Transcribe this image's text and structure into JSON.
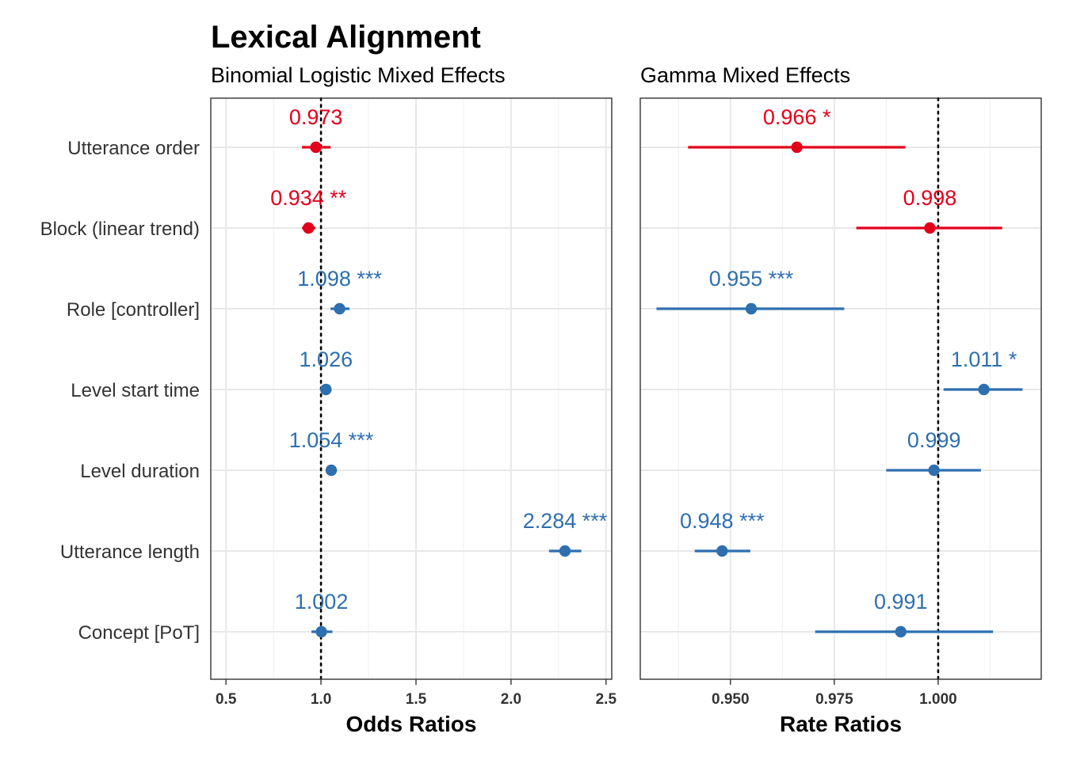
{
  "title": "Lexical Alignment",
  "colors": {
    "negative": "#e3001b",
    "positive": "#2e6fb0",
    "grid": "#e8e8e8",
    "panel_border": "#333333",
    "reference_line": "#000000"
  },
  "terms": [
    "Utterance order",
    "Block (linear trend)",
    "Role [controller]",
    "Level start time",
    "Level duration",
    "Utterance length",
    "Concept [PoT]"
  ],
  "chart_data": [
    {
      "type": "scatter",
      "subtitle": "Binomial Logistic Mixed Effects",
      "xlabel": "Odds Ratios",
      "xlim": [
        0.42,
        2.53
      ],
      "xticks": [
        0.5,
        1.0,
        1.5,
        2.0,
        2.5
      ],
      "xtick_labels": [
        "0.5",
        "1.0",
        "1.5",
        "2.0",
        "2.5"
      ],
      "reference_line": 1.0,
      "grid": true,
      "points": [
        {
          "term": "Utterance order",
          "estimate": 0.973,
          "ci_low": 0.9,
          "ci_high": 1.05,
          "label": "0.973",
          "direction": "negative"
        },
        {
          "term": "Block (linear trend)",
          "estimate": 0.934,
          "ci_low": 0.9,
          "ci_high": 0.97,
          "label": "0.934 **",
          "direction": "negative"
        },
        {
          "term": "Role [controller]",
          "estimate": 1.098,
          "ci_low": 1.05,
          "ci_high": 1.15,
          "label": "1.098 ***",
          "direction": "positive"
        },
        {
          "term": "Level start time",
          "estimate": 1.026,
          "ci_low": 1.0,
          "ci_high": 1.05,
          "label": "1.026",
          "direction": "positive"
        },
        {
          "term": "Level duration",
          "estimate": 1.054,
          "ci_low": 1.03,
          "ci_high": 1.08,
          "label": "1.054 ***",
          "direction": "positive"
        },
        {
          "term": "Utterance length",
          "estimate": 2.284,
          "ci_low": 2.2,
          "ci_high": 2.37,
          "label": "2.284 ***",
          "direction": "positive"
        },
        {
          "term": "Concept [PoT]",
          "estimate": 1.002,
          "ci_low": 0.95,
          "ci_high": 1.06,
          "label": "1.002",
          "direction": "positive"
        }
      ]
    },
    {
      "type": "scatter",
      "subtitle": "Gamma Mixed Effects",
      "xlabel": "Rate Ratios",
      "xlim": [
        0.9283,
        1.0248
      ],
      "xticks": [
        0.95,
        0.975,
        1.0
      ],
      "xtick_labels": [
        "0.950",
        "0.975",
        "1.000"
      ],
      "reference_line": 1.0,
      "grid": true,
      "points": [
        {
          "term": "Utterance order",
          "estimate": 0.966,
          "ci_low": 0.9398,
          "ci_high": 0.9921,
          "label": "0.966 *",
          "direction": "negative"
        },
        {
          "term": "Block (linear trend)",
          "estimate": 0.998,
          "ci_low": 0.9803,
          "ci_high": 1.0154,
          "label": "0.998",
          "direction": "negative"
        },
        {
          "term": "Role [controller]",
          "estimate": 0.955,
          "ci_low": 0.9322,
          "ci_high": 0.9774,
          "label": "0.955 ***",
          "direction": "positive"
        },
        {
          "term": "Level start time",
          "estimate": 1.011,
          "ci_low": 1.0013,
          "ci_high": 1.0203,
          "label": "1.011 *",
          "direction": "positive"
        },
        {
          "term": "Level duration",
          "estimate": 0.999,
          "ci_low": 0.9875,
          "ci_high": 1.0103,
          "label": "0.999",
          "direction": "positive"
        },
        {
          "term": "Utterance length",
          "estimate": 0.948,
          "ci_low": 0.9414,
          "ci_high": 0.9548,
          "label": "0.948 ***",
          "direction": "positive"
        },
        {
          "term": "Concept [PoT]",
          "estimate": 0.991,
          "ci_low": 0.9704,
          "ci_high": 1.0132,
          "label": "0.991",
          "direction": "positive"
        }
      ]
    }
  ]
}
